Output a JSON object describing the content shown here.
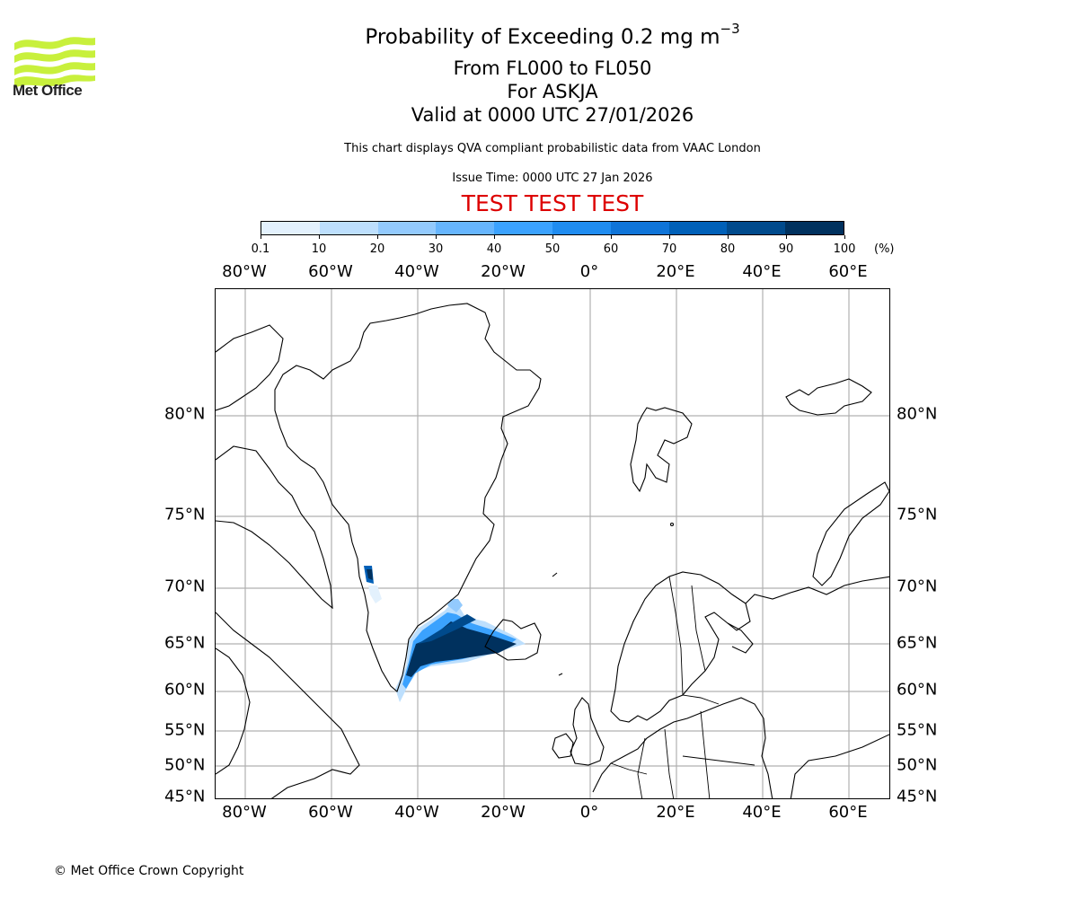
{
  "logo": {
    "name": "Met Office",
    "icon": "met-office-wave-logo-icon",
    "color": "#c8f03c"
  },
  "header": {
    "title_main": "Probability of Exceeding 0.2 mg m",
    "title_superscript": "−3",
    "line2": "From FL000 to FL050",
    "line3": "For ASKJA",
    "line4": "Valid at 0000 UTC 27/01/2026",
    "subtitle": "This chart displays QVA compliant probabilistic data from VAAC London",
    "issue_time": "Issue Time: 0000 UTC 27 Jan 2026",
    "test_banner": "TEST TEST TEST",
    "test_color": "#dd0000"
  },
  "colorbar": {
    "unit": "(%)",
    "ticks": [
      "0.1",
      "10",
      "20",
      "30",
      "40",
      "50",
      "60",
      "70",
      "80",
      "90",
      "100"
    ],
    "colors": [
      "#e3f1fd",
      "#bddffd",
      "#93cafd",
      "#66b5fd",
      "#3ba2fe",
      "#1f8cf0",
      "#0f74d8",
      "#0060b8",
      "#004a8c",
      "#00315e"
    ]
  },
  "map": {
    "top_lon_labels": [
      "80°W",
      "60°W",
      "40°W",
      "20°W",
      "0°",
      "20°E",
      "40°E",
      "60°E"
    ],
    "bottom_lon_labels": [
      "80°W",
      "60°W",
      "40°W",
      "20°W",
      "0°",
      "20°E",
      "40°E",
      "60°E"
    ],
    "left_lat_labels": [
      "80°N",
      "75°N",
      "70°N",
      "65°N",
      "60°N",
      "55°N",
      "50°N",
      "45°N"
    ],
    "right_lat_labels": [
      "80°N",
      "75°N",
      "70°N",
      "65°N",
      "60°N",
      "55°N",
      "50°N",
      "45°N"
    ],
    "gridline_color": "#b0b0b0"
  },
  "chart_data": {
    "type": "heatmap",
    "title": "Probability of Exceeding 0.2 mg m−3 From FL000 to FL050 For ASKJA Valid at 0000 UTC 27/01/2026",
    "subtitle": "This chart displays QVA compliant probabilistic data from VAAC London",
    "issue_time": "0000 UTC 27 Jan 2026",
    "volcano": "ASKJA",
    "flight_levels": [
      "FL000",
      "FL050"
    ],
    "threshold": "0.2 mg m-3",
    "colorbar": {
      "label": "(%)",
      "bounds": [
        0.1,
        10,
        20,
        30,
        40,
        50,
        60,
        70,
        80,
        90,
        100
      ],
      "colors": [
        "#e3f1fd",
        "#bddffd",
        "#93cafd",
        "#66b5fd",
        "#3ba2fe",
        "#1f8cf0",
        "#0f74d8",
        "#0060b8",
        "#004a8c",
        "#00315e"
      ]
    },
    "xlim": [
      "85°W",
      "70°E"
    ],
    "ylim": [
      "45°N",
      "85°N"
    ],
    "x_ticks": [
      "80°W",
      "60°W",
      "40°W",
      "20°W",
      "0°",
      "20°E",
      "40°E",
      "60°E"
    ],
    "y_ticks": [
      "80°N",
      "75°N",
      "70°N",
      "65°N",
      "60°N",
      "55°N",
      "50°N",
      "45°N"
    ],
    "grid": true,
    "features": [
      {
        "name": "main plume",
        "region": "Iceland westward across Denmark Strait to SE Greenland coast",
        "lon_range": [
          "45°W",
          "16°W"
        ],
        "lat_range": [
          "59°N",
          "68°N"
        ],
        "max_probability": "90-100%"
      },
      {
        "name": "secondary patch",
        "region": "West Greenland coast",
        "lon_range": [
          "53°W",
          "50°W"
        ],
        "lat_range": [
          "69°N",
          "72°N"
        ],
        "max_probability": "80-100%"
      }
    ]
  },
  "footer": {
    "copyright": "© Met Office Crown Copyright"
  }
}
